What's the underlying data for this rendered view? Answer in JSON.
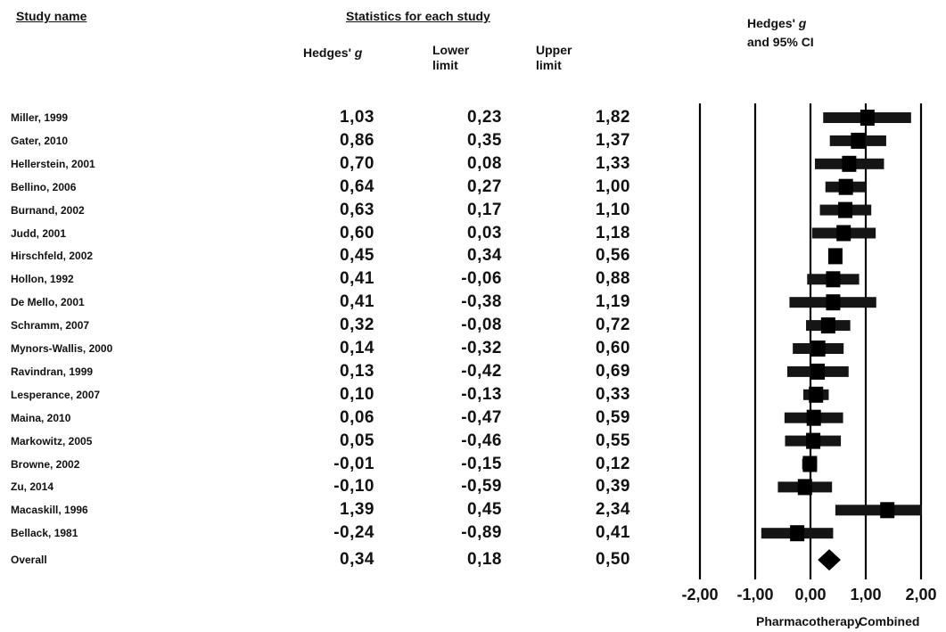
{
  "headers": {
    "study_name": "Study name",
    "statistics": "Statistics for each study",
    "hedges_g_prefix": "Hedges'",
    "g": "g",
    "lower_line1": "Lower",
    "lower_line2": "limit",
    "upper_line1": "Upper",
    "upper_line2": "limit",
    "ci_prefix": "Hedges'",
    "ci_line2": "and 95% CI"
  },
  "chart_data": {
    "type": "forest",
    "xlim": [
      -2.0,
      2.0
    ],
    "xticks": [
      "-2,00",
      "-1,00",
      "0,00",
      "1,00",
      "2,00"
    ],
    "xtick_values": [
      -2,
      -1,
      0,
      1,
      2
    ],
    "xlabel_left": "Pharmacotherapy",
    "xlabel_right": "Combined",
    "grid": true,
    "studies": [
      {
        "name": "Miller, 1999",
        "g": "1,03",
        "lower": "0,23",
        "upper": "1,82",
        "gv": 1.03,
        "lv": 0.23,
        "uv": 1.82
      },
      {
        "name": "Gater, 2010",
        "g": "0,86",
        "lower": "0,35",
        "upper": "1,37",
        "gv": 0.86,
        "lv": 0.35,
        "uv": 1.37
      },
      {
        "name": "Hellerstein, 2001",
        "g": "0,70",
        "lower": "0,08",
        "upper": "1,33",
        "gv": 0.7,
        "lv": 0.08,
        "uv": 1.33
      },
      {
        "name": "Bellino, 2006",
        "g": "0,64",
        "lower": "0,27",
        "upper": "1,00",
        "gv": 0.64,
        "lv": 0.27,
        "uv": 1.0
      },
      {
        "name": "Burnand, 2002",
        "g": "0,63",
        "lower": "0,17",
        "upper": "1,10",
        "gv": 0.63,
        "lv": 0.17,
        "uv": 1.1
      },
      {
        "name": "Judd, 2001",
        "g": "0,60",
        "lower": "0,03",
        "upper": "1,18",
        "gv": 0.6,
        "lv": 0.03,
        "uv": 1.18
      },
      {
        "name": "Hirschfeld, 2002",
        "g": "0,45",
        "lower": "0,34",
        "upper": "0,56",
        "gv": 0.45,
        "lv": 0.34,
        "uv": 0.56
      },
      {
        "name": "Hollon, 1992",
        "g": "0,41",
        "lower": "-0,06",
        "upper": "0,88",
        "gv": 0.41,
        "lv": -0.06,
        "uv": 0.88
      },
      {
        "name": "De Mello, 2001",
        "g": "0,41",
        "lower": "-0,38",
        "upper": "1,19",
        "gv": 0.41,
        "lv": -0.38,
        "uv": 1.19
      },
      {
        "name": "Schramm, 2007",
        "g": "0,32",
        "lower": "-0,08",
        "upper": "0,72",
        "gv": 0.32,
        "lv": -0.08,
        "uv": 0.72
      },
      {
        "name": "Mynors-Wallis, 2000",
        "g": "0,14",
        "lower": "-0,32",
        "upper": "0,60",
        "gv": 0.14,
        "lv": -0.32,
        "uv": 0.6
      },
      {
        "name": "Ravindran, 1999",
        "g": "0,13",
        "lower": "-0,42",
        "upper": "0,69",
        "gv": 0.13,
        "lv": -0.42,
        "uv": 0.69
      },
      {
        "name": "Lesperance, 2007",
        "g": "0,10",
        "lower": "-0,13",
        "upper": "0,33",
        "gv": 0.1,
        "lv": -0.13,
        "uv": 0.33
      },
      {
        "name": "Maina, 2010",
        "g": "0,06",
        "lower": "-0,47",
        "upper": "0,59",
        "gv": 0.06,
        "lv": -0.47,
        "uv": 0.59
      },
      {
        "name": "Markowitz, 2005",
        "g": "0,05",
        "lower": "-0,46",
        "upper": "0,55",
        "gv": 0.05,
        "lv": -0.46,
        "uv": 0.55
      },
      {
        "name": "Browne, 2002",
        "g": "-0,01",
        "lower": "-0,15",
        "upper": "0,12",
        "gv": -0.01,
        "lv": -0.15,
        "uv": 0.12
      },
      {
        "name": "Zu, 2014",
        "g": "-0,10",
        "lower": "-0,59",
        "upper": "0,39",
        "gv": -0.1,
        "lv": -0.59,
        "uv": 0.39
      },
      {
        "name": "Macaskill, 1996",
        "g": "1,39",
        "lower": "0,45",
        "upper": "2,34",
        "gv": 1.39,
        "lv": 0.45,
        "uv": 2.34
      },
      {
        "name": "Bellack, 1981",
        "g": "-0,24",
        "lower": "-0,89",
        "upper": "0,41",
        "gv": -0.24,
        "lv": -0.89,
        "uv": 0.41
      }
    ],
    "overall": {
      "name": "Overall",
      "g": "0,34",
      "lower": "0,18",
      "upper": "0,50",
      "gv": 0.34,
      "lv": 0.18,
      "uv": 0.5
    }
  }
}
